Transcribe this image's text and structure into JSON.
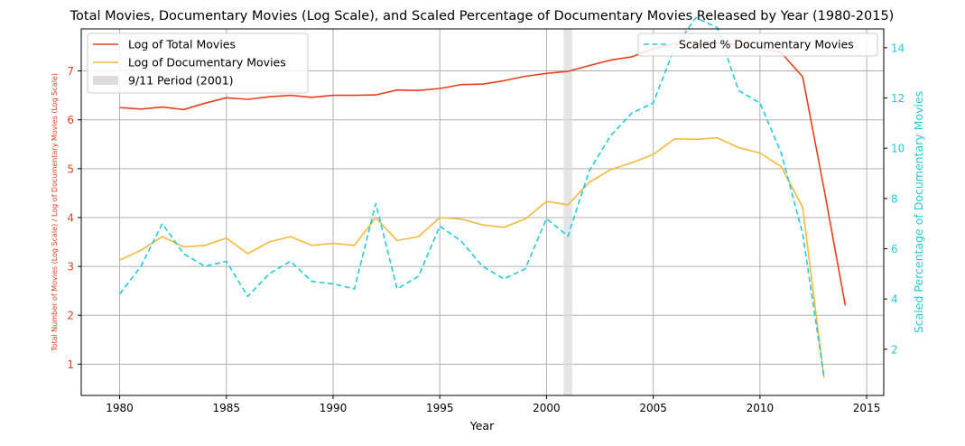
{
  "chart_data": {
    "type": "line",
    "title": "Total Movies, Documentary Movies (Log Scale), and Scaled Percentage of Documentary Movies Released by Year (1980-2015)",
    "xlabel": "Year",
    "ylabel_left": "Total Number of Movies (Log Scale) / Log of Documentary Movies (Log Scale)",
    "ylabel_right": "Scaled Percentage of Documentary Movies",
    "xlim": [
      1978.2,
      2015.8
    ],
    "ylim_left": [
      0.36,
      7.86
    ],
    "ylim_right": [
      0.16,
      14.75
    ],
    "x_ticks": [
      1980,
      1985,
      1990,
      1995,
      2000,
      2005,
      2010,
      2015
    ],
    "x_tick_labels": [
      "1980",
      "1985",
      "1990",
      "1995",
      "2000",
      "2005",
      "2010",
      "2015"
    ],
    "y_left_ticks": [
      1,
      2,
      3,
      4,
      5,
      6,
      7
    ],
    "y_left_tick_labels": [
      "1",
      "2",
      "3",
      "4",
      "5",
      "6",
      "7"
    ],
    "y_right_ticks": [
      2,
      4,
      6,
      8,
      10,
      12,
      14
    ],
    "y_right_tick_labels": [
      "2",
      "4",
      "6",
      "8",
      "10",
      "12",
      "14"
    ],
    "grid": true,
    "colors": {
      "total": "#e8401c",
      "documentary": "#f5b93e",
      "scaled_pct": "#22cbd7",
      "span": "#dcdcdc",
      "grid": "#b0b0b0"
    },
    "shaded_span": {
      "label": "9/11 Period (2001)",
      "x_start": 2000.8,
      "x_end": 2001.2
    },
    "series": [
      {
        "name": "Log of Total Movies",
        "axis": "left",
        "style": "solid",
        "x": [
          1980,
          1981,
          1982,
          1983,
          1984,
          1985,
          1986,
          1987,
          1988,
          1989,
          1990,
          1991,
          1992,
          1993,
          1994,
          1995,
          1996,
          1997,
          1998,
          1999,
          2000,
          2001,
          2002,
          2003,
          2004,
          2005,
          2006,
          2007,
          2008,
          2009,
          2010,
          2011,
          2012,
          2013,
          2014
        ],
        "y": [
          6.25,
          6.22,
          6.26,
          6.21,
          6.34,
          6.45,
          6.42,
          6.47,
          6.5,
          6.46,
          6.5,
          6.5,
          6.51,
          6.61,
          6.6,
          6.64,
          6.72,
          6.73,
          6.8,
          6.89,
          6.95,
          6.99,
          7.11,
          7.22,
          7.29,
          7.45,
          7.56,
          7.55,
          7.57,
          7.54,
          7.46,
          7.37,
          6.88,
          4.59,
          2.2
        ]
      },
      {
        "name": "Log of Documentary Movies",
        "axis": "left",
        "style": "solid",
        "x": [
          1980,
          1981,
          1982,
          1983,
          1984,
          1985,
          1986,
          1987,
          1988,
          1989,
          1990,
          1991,
          1992,
          1993,
          1994,
          1995,
          1996,
          1997,
          1998,
          1999,
          2000,
          2001,
          2002,
          2003,
          2004,
          2005,
          2006,
          2007,
          2008,
          2009,
          2010,
          2011,
          2012,
          2013
        ],
        "y": [
          3.13,
          3.33,
          3.61,
          3.4,
          3.43,
          3.58,
          3.26,
          3.5,
          3.61,
          3.43,
          3.47,
          3.43,
          4.0,
          3.53,
          3.61,
          4.0,
          3.97,
          3.85,
          3.8,
          3.97,
          4.33,
          4.26,
          4.72,
          4.98,
          5.12,
          5.29,
          5.61,
          5.6,
          5.63,
          5.43,
          5.32,
          5.04,
          4.21,
          0.72
        ]
      },
      {
        "name": "Scaled % Documentary Movies",
        "axis": "right",
        "style": "dashed",
        "x": [
          1980,
          1981,
          1982,
          1983,
          1984,
          1985,
          1986,
          1987,
          1988,
          1989,
          1990,
          1991,
          1992,
          1993,
          1994,
          1995,
          1996,
          1997,
          1998,
          1999,
          2000,
          2001,
          2002,
          2003,
          2004,
          2005,
          2006,
          2007,
          2008,
          2009,
          2010,
          2011,
          2012,
          2013
        ],
        "y": [
          4.2,
          5.3,
          7.0,
          5.8,
          5.3,
          5.5,
          4.1,
          5.0,
          5.5,
          4.7,
          4.6,
          4.4,
          7.8,
          4.4,
          4.9,
          6.9,
          6.3,
          5.3,
          4.8,
          5.2,
          7.2,
          6.5,
          9.1,
          10.5,
          11.4,
          11.8,
          14.0,
          15.2,
          14.8,
          12.3,
          11.8,
          9.8,
          6.6,
          0.9
        ]
      }
    ],
    "legend_left": {
      "placement": "upper-left",
      "entries": [
        {
          "label": "Log of Total Movies",
          "kind": "line",
          "series": 0
        },
        {
          "label": "Log of Documentary Movies",
          "kind": "line",
          "series": 1
        },
        {
          "label": "9/11 Period (2001)",
          "kind": "patch"
        }
      ]
    },
    "legend_right": {
      "placement": "upper-right",
      "entries": [
        {
          "label": "Scaled % Documentary Movies",
          "kind": "dashed",
          "series": 2
        }
      ]
    }
  }
}
